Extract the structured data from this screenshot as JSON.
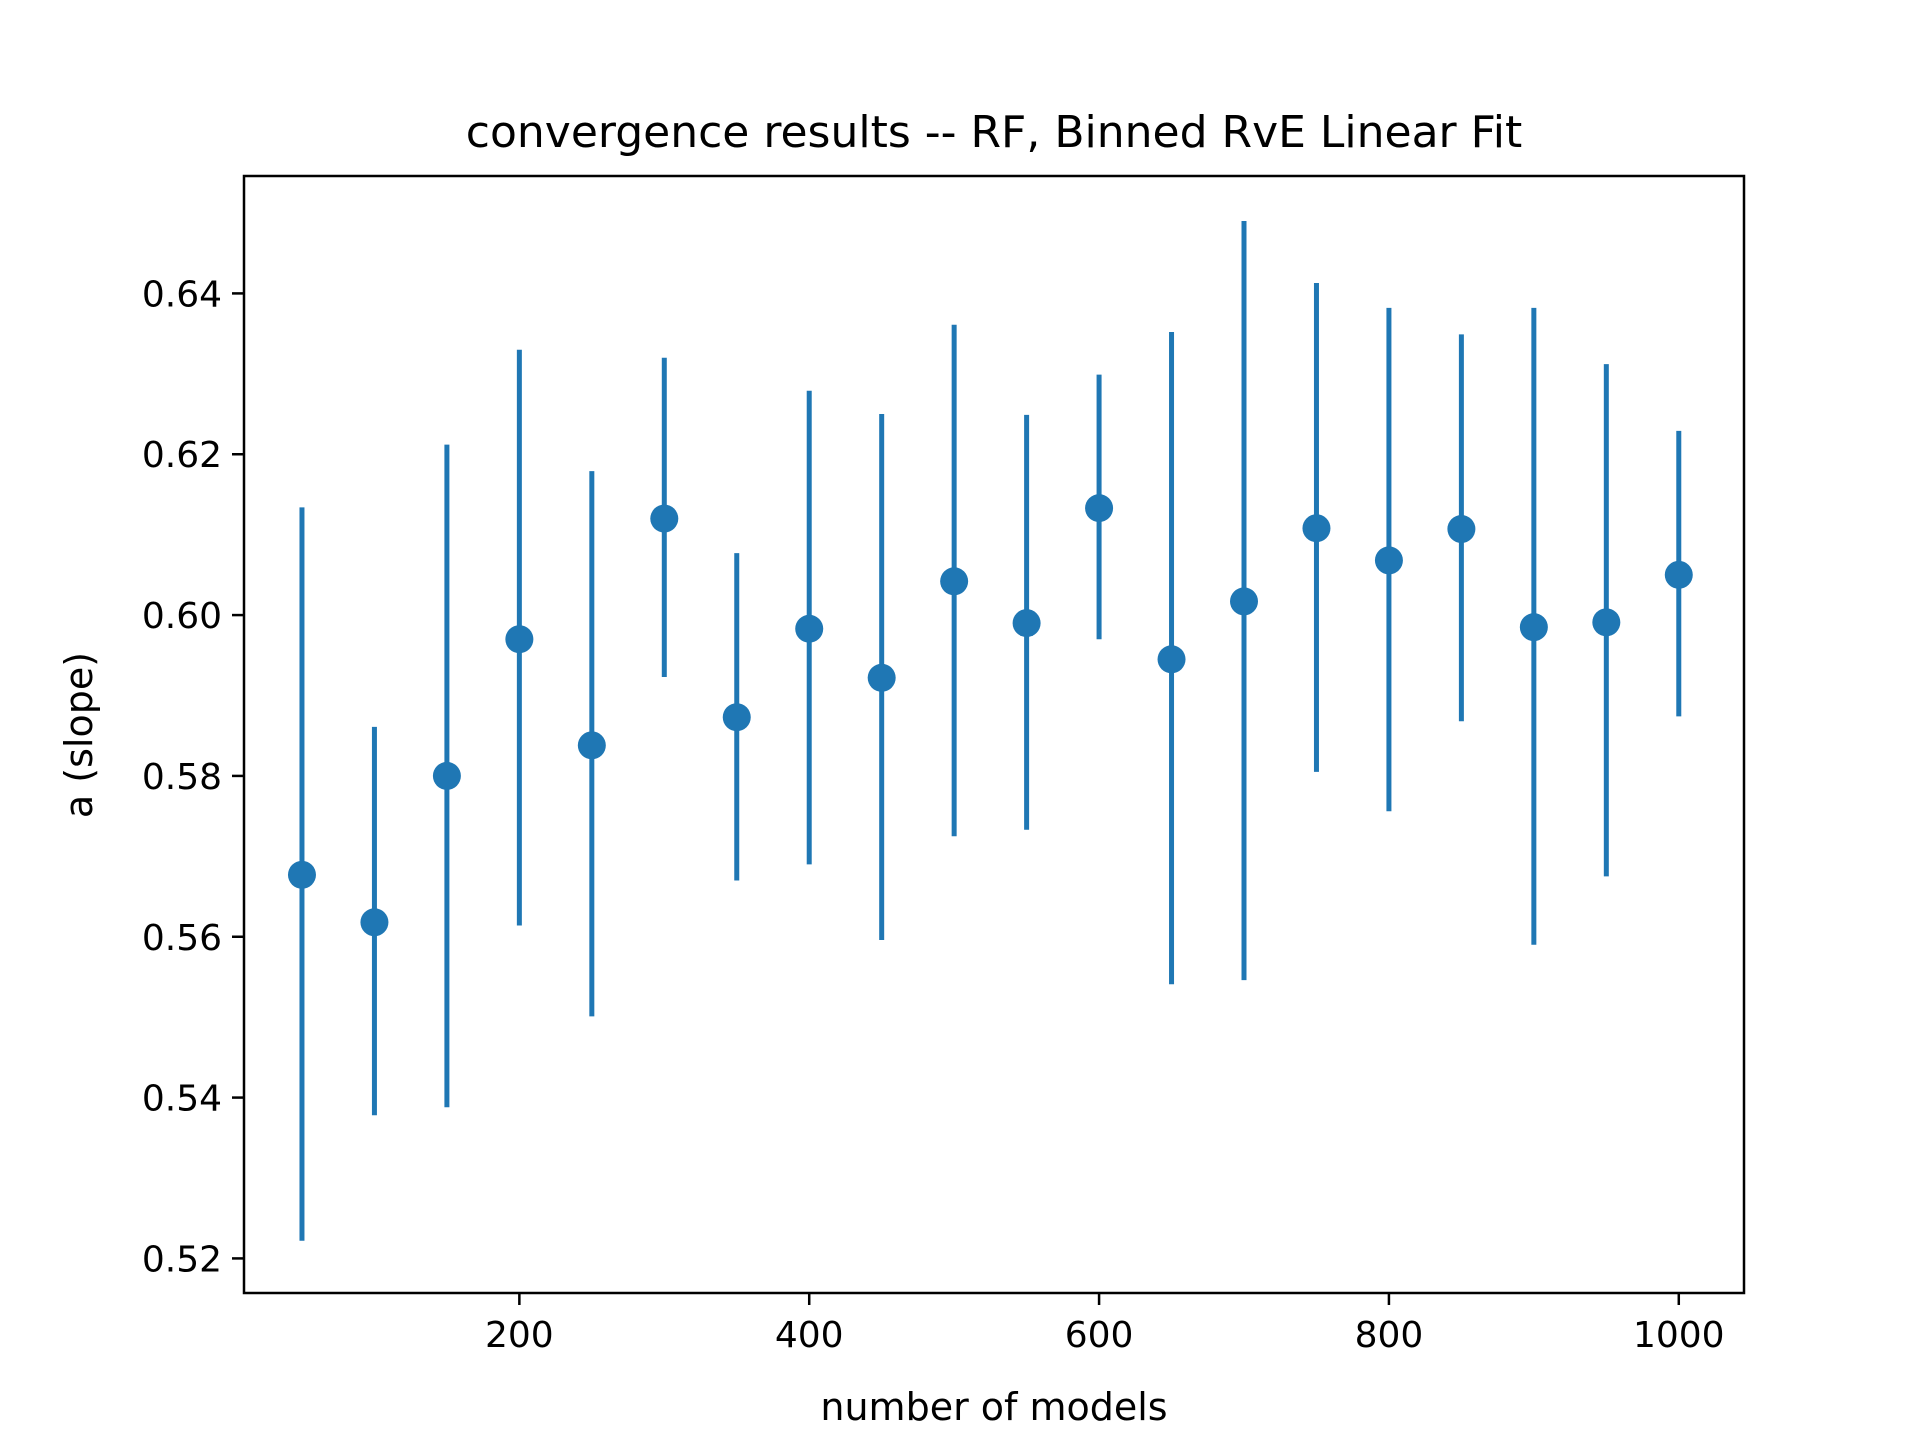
{
  "chart_data": {
    "type": "scatter",
    "title": "convergence results -- RF, Binned RvE Linear Fit",
    "xlabel": "number of models",
    "ylabel": "a (slope)",
    "xlim": [
      10,
      1045
    ],
    "ylim": [
      0.5157,
      0.6546
    ],
    "xticks": [
      200,
      400,
      600,
      800,
      1000
    ],
    "yticks": [
      0.52,
      0.54,
      0.56,
      0.58,
      0.6,
      0.62,
      0.64
    ],
    "xtick_labels": [
      "200",
      "400",
      "600",
      "800",
      "1000"
    ],
    "ytick_labels": [
      "0.52",
      "0.54",
      "0.56",
      "0.58",
      "0.60",
      "0.62",
      "0.64"
    ],
    "grid": false,
    "color": "#1f77b4",
    "series": [
      {
        "x": [
          50,
          100,
          150,
          200,
          250,
          300,
          350,
          400,
          450,
          500,
          550,
          600,
          650,
          700,
          750,
          800,
          850,
          900,
          950,
          1000
        ],
        "y": [
          0.5677,
          0.5618,
          0.58,
          0.597,
          0.5838,
          0.612,
          0.5873,
          0.5983,
          0.5922,
          0.6042,
          0.599,
          0.6133,
          0.5945,
          0.6017,
          0.6108,
          0.6068,
          0.6107,
          0.5985,
          0.5991,
          0.605
        ],
        "yerr_low": [
          0.5222,
          0.5378,
          0.5388,
          0.5614,
          0.5501,
          0.5923,
          0.567,
          0.569,
          0.5596,
          0.5725,
          0.5733,
          0.597,
          0.5541,
          0.5546,
          0.5805,
          0.5756,
          0.5868,
          0.559,
          0.5675,
          0.5874
        ],
        "yerr_high": [
          0.6134,
          0.5861,
          0.6212,
          0.633,
          0.6179,
          0.632,
          0.6077,
          0.6279,
          0.625,
          0.6361,
          0.6249,
          0.6299,
          0.6352,
          0.649,
          0.6413,
          0.6382,
          0.6349,
          0.6382,
          0.6312,
          0.6229
        ]
      }
    ]
  }
}
